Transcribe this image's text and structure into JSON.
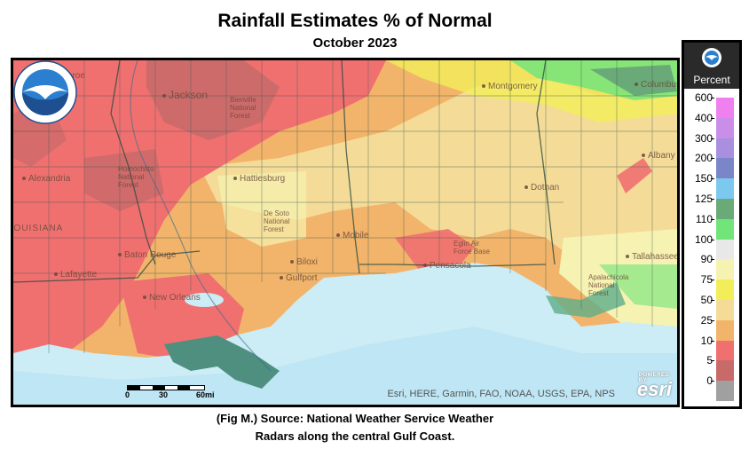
{
  "header": {
    "title": "Rainfall Estimates % of Normal",
    "subtitle": "October 2023"
  },
  "map": {
    "places": [
      {
        "id": "monroe",
        "name": "Monroe"
      },
      {
        "id": "jackson",
        "name": "Jackson"
      },
      {
        "id": "bienville",
        "name": "Bienville National Forest"
      },
      {
        "id": "montgomery",
        "name": "Montgomery"
      },
      {
        "id": "columbus",
        "name": "Columbus"
      },
      {
        "id": "alexandria",
        "name": "Alexandria"
      },
      {
        "id": "homochitto",
        "name": "Homochitto National Forest"
      },
      {
        "id": "hattiesburg",
        "name": "Hattiesburg"
      },
      {
        "id": "desoto",
        "name": "De Soto National Forest"
      },
      {
        "id": "dothan",
        "name": "Dothan"
      },
      {
        "id": "albany",
        "name": "Albany"
      },
      {
        "id": "batonrouge",
        "name": "Baton Rouge"
      },
      {
        "id": "mobile",
        "name": "Mobile"
      },
      {
        "id": "eglin",
        "name": "Eglin Air Force Base"
      },
      {
        "id": "lafayette",
        "name": "Lafayette"
      },
      {
        "id": "biloxi",
        "name": "Biloxi"
      },
      {
        "id": "gulfport",
        "name": "Gulfport"
      },
      {
        "id": "pensacola",
        "name": "Pensacola"
      },
      {
        "id": "neworleans",
        "name": "New Orleans"
      },
      {
        "id": "tallahassee",
        "name": "Tallahassee"
      },
      {
        "id": "apalachicola",
        "name": "Apalachicola National Forest"
      },
      {
        "id": "louisiana",
        "name": "LOUISIANA"
      }
    ],
    "scale": {
      "ticks": [
        "0",
        "30",
        "60mi"
      ]
    },
    "attribution": "Esri, HERE, Garmin, FAO, NOAA, USGS, EPA, NPS",
    "esri_logo": {
      "text": "esri",
      "tagline": "POWERED BY"
    },
    "noaa_logo": {
      "text": "NOAA",
      "ring_text": "NATIONAL OCEANIC AND ATMOSPHERIC ADMINISTRATION · U.S. DEPARTMENT OF COMMERCE"
    }
  },
  "legend": {
    "title": "Percent",
    "items": [
      {
        "value": "600",
        "color": "#f07ff0"
      },
      {
        "value": "400",
        "color": "#c98ee8"
      },
      {
        "value": "300",
        "color": "#a98fe0"
      },
      {
        "value": "200",
        "color": "#7a86c8"
      },
      {
        "value": "150",
        "color": "#7cc9ef"
      },
      {
        "value": "125",
        "color": "#6aaa78"
      },
      {
        "value": "110",
        "color": "#72e57a"
      },
      {
        "value": "100",
        "color": "#e8e8e8"
      },
      {
        "value": "90",
        "color": "#f6f2b2"
      },
      {
        "value": "75",
        "color": "#f2ee5a"
      },
      {
        "value": "50",
        "color": "#f4dc98"
      },
      {
        "value": "25",
        "color": "#f2b46a"
      },
      {
        "value": "10",
        "color": "#f07070"
      },
      {
        "value": "5",
        "color": "#c96a6a"
      },
      {
        "value": "0",
        "color": "#a0a0a0"
      }
    ]
  },
  "caption": {
    "line1": "(Fig M.) Source: National Weather Service Weather",
    "line2": "Radars along the central Gulf Coast."
  }
}
